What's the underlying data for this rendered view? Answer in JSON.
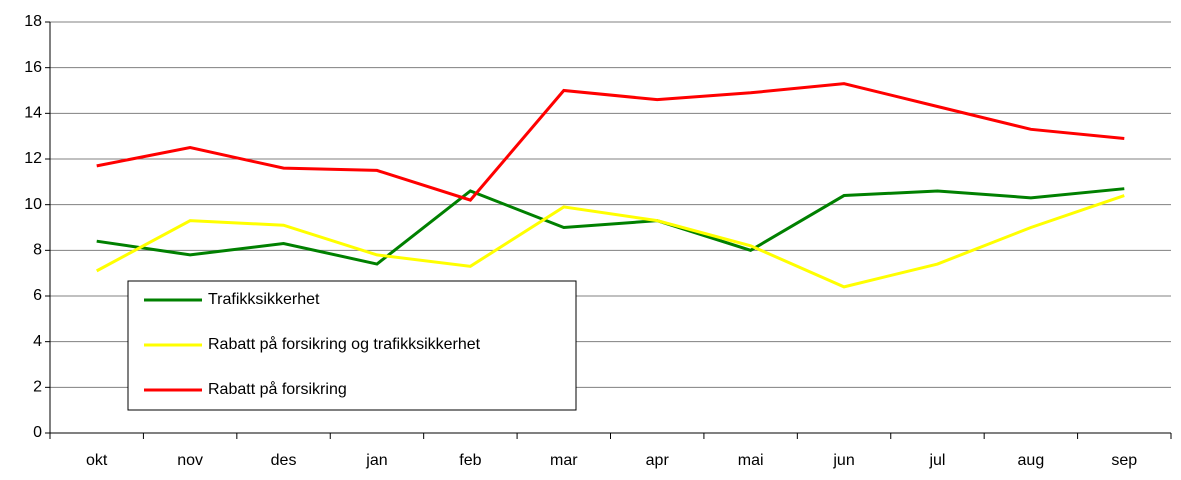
{
  "chart_data": {
    "type": "line",
    "categories": [
      "okt",
      "nov",
      "des",
      "jan",
      "feb",
      "mar",
      "apr",
      "mai",
      "jun",
      "jul",
      "aug",
      "sep"
    ],
    "series": [
      {
        "name": "Trafikksikkerhet",
        "color": "#008000",
        "values": [
          8.4,
          7.8,
          8.3,
          7.4,
          10.6,
          9.0,
          9.3,
          8.0,
          10.4,
          10.6,
          10.3,
          10.7
        ]
      },
      {
        "name": "Rabatt på forsikring og trafikksikkerhet",
        "color": "#ffff00",
        "values": [
          7.1,
          9.3,
          9.1,
          7.8,
          7.3,
          9.9,
          9.3,
          8.2,
          6.4,
          7.4,
          9.0,
          10.4
        ]
      },
      {
        "name": "Rabatt på forsikring",
        "color": "#ff0000",
        "values": [
          11.7,
          12.5,
          11.6,
          11.5,
          10.2,
          15.0,
          14.6,
          14.9,
          15.3,
          14.3,
          13.3,
          12.9
        ]
      }
    ],
    "ylim": [
      0,
      18
    ],
    "yticks": [
      0,
      2,
      4,
      6,
      8,
      10,
      12,
      14,
      16,
      18
    ],
    "grid": true,
    "legend": "lower-left"
  }
}
